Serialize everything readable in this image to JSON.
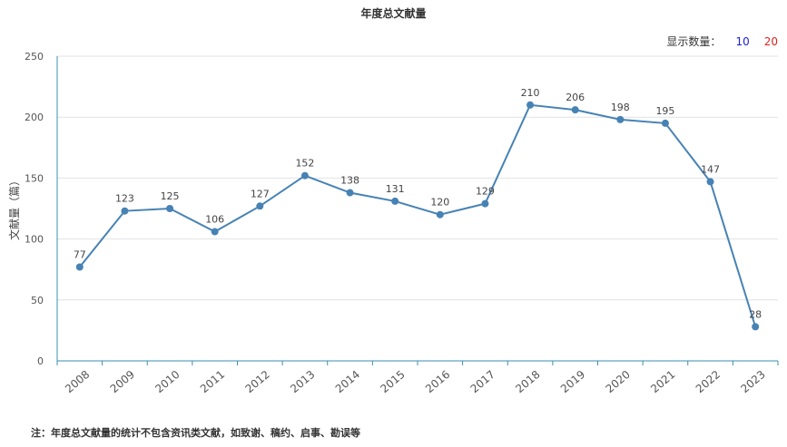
{
  "header": {
    "count_label": "显示数量：",
    "option_a": "10",
    "option_b": "20",
    "option_a_color": "#1b1bd6",
    "option_b_color": "#e02020"
  },
  "footnote": "注：年度总文献量的统计不包含资讯类文献，如致谢、稿约、启事、勘误等",
  "chart_data": {
    "type": "line",
    "title": "年度总文献量",
    "xlabel": "",
    "ylabel": "文献量（篇）",
    "ylim": [
      0,
      250
    ],
    "yticks": [
      "0",
      "50",
      "100",
      "150",
      "200",
      "250"
    ],
    "categories": [
      "2008",
      "2009",
      "2010",
      "2011",
      "2012",
      "2013",
      "2014",
      "2015",
      "2016",
      "2017",
      "2018",
      "2019",
      "2020",
      "2021",
      "2022",
      "2023"
    ],
    "values": [
      77,
      123,
      125,
      106,
      127,
      152,
      138,
      131,
      120,
      129,
      210,
      206,
      198,
      195,
      147,
      28
    ],
    "line_color": "#4682b4",
    "grid": true
  }
}
